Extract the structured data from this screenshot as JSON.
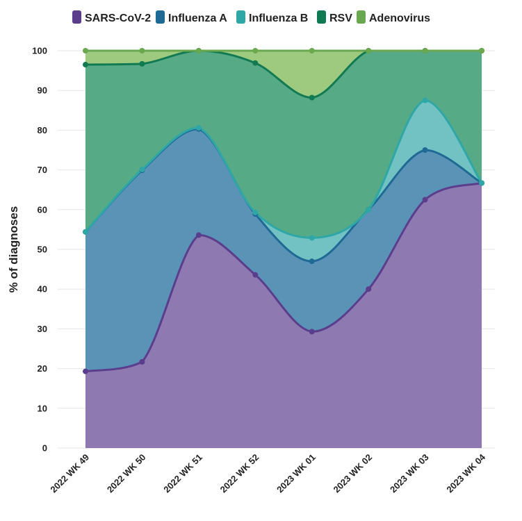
{
  "chart_data": {
    "type": "area",
    "stacked": true,
    "normalized_percent": true,
    "curve": "smooth",
    "categories": [
      "2022 WK 49",
      "2022 WK 50",
      "2022 WK 51",
      "2022 WK 52",
      "2023 WK 01",
      "2023 WK 02",
      "2023 WK 03",
      "2023 WK 04"
    ],
    "ylabel": "% of diagnoses",
    "xlabel": "",
    "ylim": [
      0,
      100
    ],
    "yticks": [
      0,
      10,
      20,
      30,
      40,
      50,
      60,
      70,
      80,
      90,
      100
    ],
    "grid": true,
    "legend": "top",
    "series": [
      {
        "name": "SARS-CoV-2",
        "color": "#5a3d8c",
        "fill": "#8e7ab0",
        "cumulative": [
          19.3,
          21.7,
          53.6,
          43.6,
          29.3,
          40.0,
          62.5,
          66.7
        ]
      },
      {
        "name": "Influenza A",
        "color": "#1e6a94",
        "fill": "#5b93b7",
        "cumulative": [
          54.4,
          69.9,
          80.3,
          58.9,
          47.0,
          60.0,
          75.0,
          66.7
        ]
      },
      {
        "name": "Influenza B",
        "color": "#2fa7a7",
        "fill": "#72c2c3",
        "cumulative": [
          54.4,
          70.1,
          80.6,
          59.3,
          52.9,
          60.0,
          87.5,
          66.7
        ]
      },
      {
        "name": "RSV",
        "color": "#127a53",
        "fill": "#56aa86",
        "cumulative": [
          96.5,
          96.7,
          100.0,
          96.9,
          88.2,
          100.0,
          100.0,
          100.0
        ]
      },
      {
        "name": "Adenovirus",
        "color": "#6aa84f",
        "fill": "#9dca7f",
        "cumulative": [
          100,
          100,
          100,
          100,
          100,
          100,
          100,
          100
        ]
      }
    ]
  }
}
